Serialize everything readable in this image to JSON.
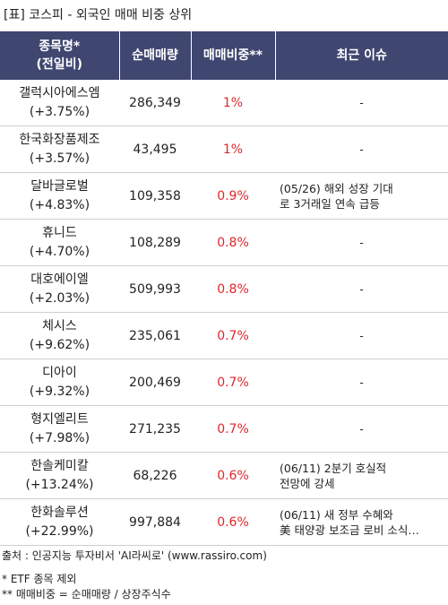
{
  "title": "[표] 코스피 - 외국인 매매 비중 상위",
  "headers": {
    "name": "종목명*\n(전일비)",
    "volume": "순매매량",
    "ratio": "매매비중**",
    "issue": "최근 이슈"
  },
  "rows": [
    {
      "name": "갤럭시아에스엠",
      "change": "(+3.75%)",
      "volume": "286,349",
      "ratio": "1%",
      "issue": "-"
    },
    {
      "name": "한국화장품제조",
      "change": "(+3.57%)",
      "volume": "43,495",
      "ratio": "1%",
      "issue": "-"
    },
    {
      "name": "달바글로벌",
      "change": "(+4.83%)",
      "volume": "109,358",
      "ratio": "0.9%",
      "issue": "(05/26) 해외 성장 기대\n로 3거래일 연속 급등"
    },
    {
      "name": "휴니드",
      "change": "(+4.70%)",
      "volume": "108,289",
      "ratio": "0.8%",
      "issue": "-"
    },
    {
      "name": "대호에이엘",
      "change": "(+2.03%)",
      "volume": "509,993",
      "ratio": "0.8%",
      "issue": "-"
    },
    {
      "name": "체시스",
      "change": "(+9.62%)",
      "volume": "235,061",
      "ratio": "0.7%",
      "issue": "-"
    },
    {
      "name": "디아이",
      "change": "(+9.32%)",
      "volume": "200,469",
      "ratio": "0.7%",
      "issue": "-"
    },
    {
      "name": "형지엘리트",
      "change": "(+7.98%)",
      "volume": "271,235",
      "ratio": "0.7%",
      "issue": "-"
    },
    {
      "name": "한솔케미칼",
      "change": "(+13.24%)",
      "volume": "68,226",
      "ratio": "0.6%",
      "issue": "(06/11) 2분기 호실적\n전망에 강세"
    },
    {
      "name": "한화솔루션",
      "change": "(+22.99%)",
      "volume": "997,884",
      "ratio": "0.6%",
      "issue": "(06/11) 새 정부 수혜와\n美 태양광 보조금 로비 소식…"
    }
  ],
  "footer": {
    "source": "출처 : 인공지능 투자비서 'AI라씨로' (www.rassiro.com)",
    "note1": "* ETF 종목 제외",
    "note2": "** 매매비중 = 순매매량 / 상장주식수"
  },
  "colors": {
    "header_bg": "#3f4670",
    "ratio_text": "#e0262a",
    "row_border": "#cfcfcf"
  }
}
